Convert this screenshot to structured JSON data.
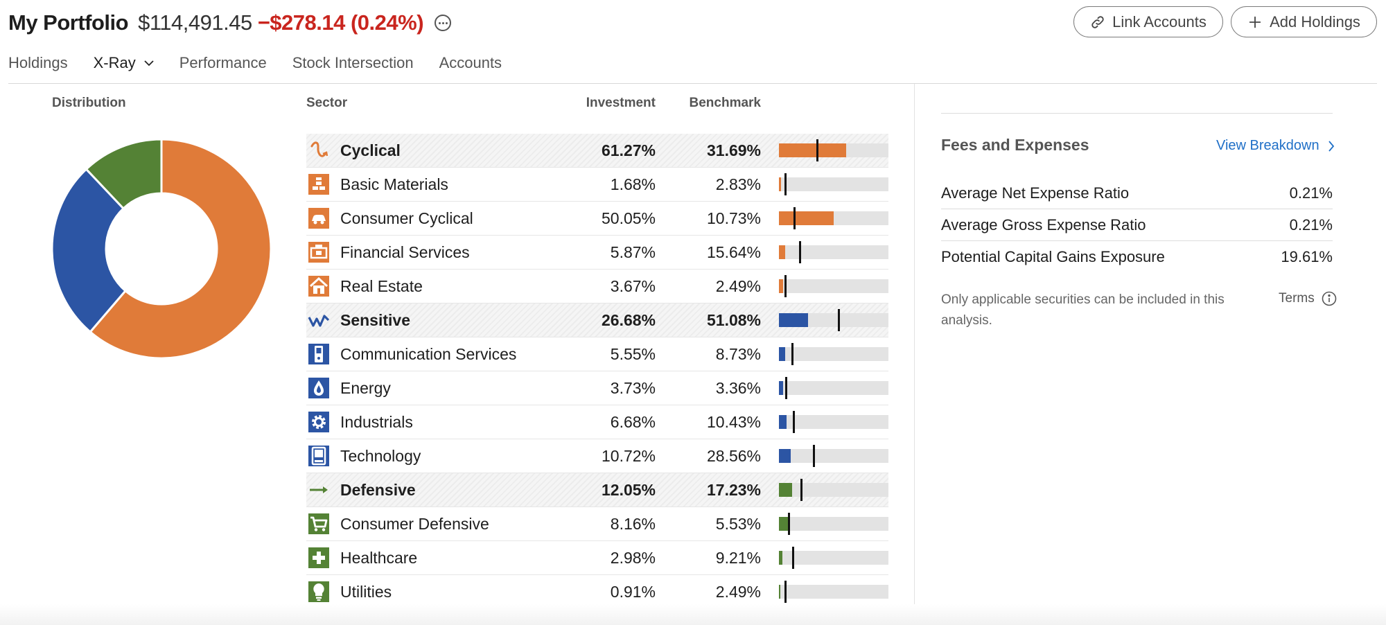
{
  "header": {
    "title": "My Portfolio",
    "value": "$114,491.45",
    "change": "−$278.14 (0.24%)",
    "link_accounts_label": "Link Accounts",
    "add_holdings_label": "Add Holdings"
  },
  "tabs": [
    {
      "label": "Holdings"
    },
    {
      "label": "X-Ray"
    },
    {
      "label": "Performance"
    },
    {
      "label": "Stock Intersection"
    },
    {
      "label": "Accounts"
    }
  ],
  "active_tab": "X-Ray",
  "distribution": {
    "label": "Distribution",
    "slices": [
      {
        "group": "Cyclical",
        "share": 61.27,
        "color": "#e07b39"
      },
      {
        "group": "Sensitive",
        "share": 26.68,
        "color": "#2c55a4"
      },
      {
        "group": "Defensive",
        "share": 12.05,
        "color": "#548235"
      }
    ]
  },
  "sector_table": {
    "headers": {
      "sector": "Sector",
      "investment": "Investment",
      "benchmark": "Benchmark"
    },
    "bar_scale_max": 100,
    "rows": [
      {
        "name": "Cyclical",
        "investment": "61.27%",
        "benchmark": "31.69%",
        "inv_value": 61.27,
        "bmk_value": 31.69,
        "group": true,
        "color": "#e07b39",
        "icon": "cyclical-icon"
      },
      {
        "name": "Basic Materials",
        "investment": "1.68%",
        "benchmark": "2.83%",
        "inv_value": 1.68,
        "bmk_value": 2.83,
        "group": false,
        "color": "#e07b39",
        "icon": "basic-materials-icon"
      },
      {
        "name": "Consumer Cyclical",
        "investment": "50.05%",
        "benchmark": "10.73%",
        "inv_value": 50.05,
        "bmk_value": 10.73,
        "group": false,
        "color": "#e07b39",
        "icon": "consumer-cyclical-icon"
      },
      {
        "name": "Financial Services",
        "investment": "5.87%",
        "benchmark": "15.64%",
        "inv_value": 5.87,
        "bmk_value": 15.64,
        "group": false,
        "color": "#e07b39",
        "icon": "financial-services-icon"
      },
      {
        "name": "Real Estate",
        "investment": "3.67%",
        "benchmark": "2.49%",
        "inv_value": 3.67,
        "bmk_value": 2.49,
        "group": false,
        "color": "#e07b39",
        "icon": "real-estate-icon"
      },
      {
        "name": "Sensitive",
        "investment": "26.68%",
        "benchmark": "51.08%",
        "inv_value": 26.68,
        "bmk_value": 51.08,
        "group": true,
        "color": "#2c55a4",
        "icon": "sensitive-icon"
      },
      {
        "name": "Communication Services",
        "investment": "5.55%",
        "benchmark": "8.73%",
        "inv_value": 5.55,
        "bmk_value": 8.73,
        "group": false,
        "color": "#2c55a4",
        "icon": "communication-services-icon"
      },
      {
        "name": "Energy",
        "investment": "3.73%",
        "benchmark": "3.36%",
        "inv_value": 3.73,
        "bmk_value": 3.36,
        "group": false,
        "color": "#2c55a4",
        "icon": "energy-icon"
      },
      {
        "name": "Industrials",
        "investment": "6.68%",
        "benchmark": "10.43%",
        "inv_value": 6.68,
        "bmk_value": 10.43,
        "group": false,
        "color": "#2c55a4",
        "icon": "industrials-icon"
      },
      {
        "name": "Technology",
        "investment": "10.72%",
        "benchmark": "28.56%",
        "inv_value": 10.72,
        "bmk_value": 28.56,
        "group": false,
        "color": "#2c55a4",
        "icon": "technology-icon"
      },
      {
        "name": "Defensive",
        "investment": "12.05%",
        "benchmark": "17.23%",
        "inv_value": 12.05,
        "bmk_value": 17.23,
        "group": true,
        "color": "#548235",
        "icon": "defensive-icon"
      },
      {
        "name": "Consumer Defensive",
        "investment": "8.16%",
        "benchmark": "5.53%",
        "inv_value": 8.16,
        "bmk_value": 5.53,
        "group": false,
        "color": "#548235",
        "icon": "consumer-defensive-icon"
      },
      {
        "name": "Healthcare",
        "investment": "2.98%",
        "benchmark": "9.21%",
        "inv_value": 2.98,
        "bmk_value": 9.21,
        "group": false,
        "color": "#548235",
        "icon": "healthcare-icon"
      },
      {
        "name": "Utilities",
        "investment": "0.91%",
        "benchmark": "2.49%",
        "inv_value": 0.91,
        "bmk_value": 2.49,
        "group": false,
        "color": "#548235",
        "icon": "utilities-icon"
      }
    ]
  },
  "fees": {
    "title": "Fees and Expenses",
    "view_breakdown_label": "View Breakdown",
    "rows": [
      {
        "label": "Average Net Expense Ratio",
        "value": "0.21%"
      },
      {
        "label": "Average Gross Expense Ratio",
        "value": "0.21%"
      },
      {
        "label": "Potential Capital Gains Exposure",
        "value": "19.61%"
      }
    ],
    "note": "Only applicable securities can be included in this analysis.",
    "terms_label": "Terms"
  },
  "colors": {
    "negative": "#c9251e",
    "link": "#1f6fc7",
    "cyclical": "#e07b39",
    "sensitive": "#2c55a4",
    "defensive": "#548235"
  }
}
